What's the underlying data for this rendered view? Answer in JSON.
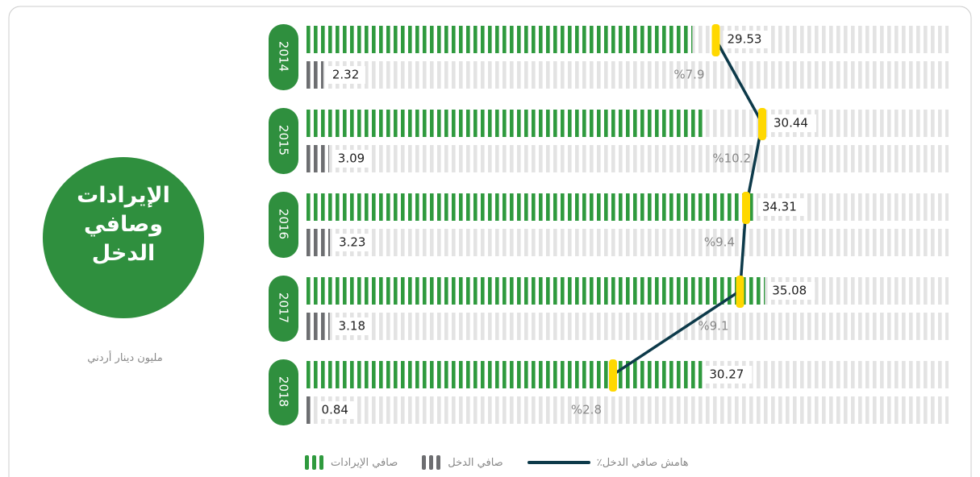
{
  "chart_data": {
    "type": "striped-bar",
    "title": "الإيرادات وصافي الدخل",
    "subtitle": "مليون دينار أردني",
    "categories": [
      "2014",
      "2015",
      "2016",
      "2017",
      "2018"
    ],
    "series": [
      {
        "name": "صافي الإيرادات",
        "color": "#2f9a3e",
        "values": [
          29.53,
          30.44,
          34.31,
          35.08,
          30.27
        ]
      },
      {
        "name": "صافي الدخل",
        "color": "#6d6e71",
        "values": [
          2.32,
          3.09,
          3.23,
          3.18,
          0.84
        ]
      },
      {
        "name": "هامش صافي الدخل٪",
        "color": "#0d3a4a",
        "marker_color": "#ffd800",
        "values": [
          7.9,
          10.2,
          9.4,
          9.1,
          2.8
        ],
        "value_labels": [
          "%7.9",
          "%10.2",
          "%9.4",
          "%9.1",
          "%2.8"
        ]
      }
    ]
  }
}
